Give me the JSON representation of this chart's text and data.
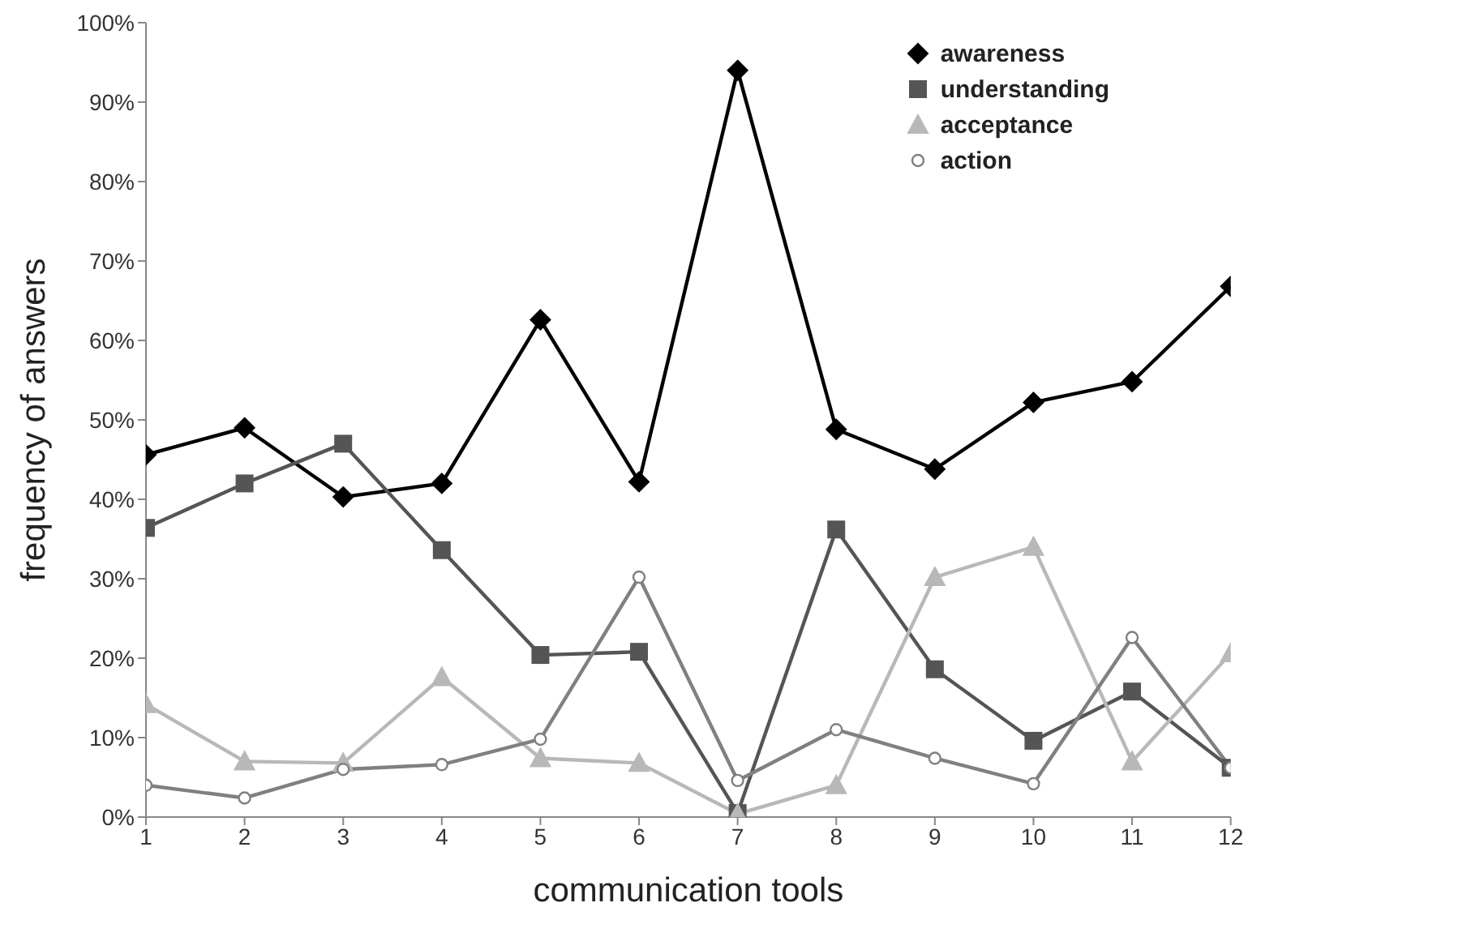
{
  "chart_data": {
    "type": "line",
    "xlabel": "communication tools",
    "ylabel": "frequency of answers",
    "x": [
      1,
      2,
      3,
      4,
      5,
      6,
      7,
      8,
      9,
      10,
      11,
      12
    ],
    "xlim": [
      1,
      12
    ],
    "xticks": [
      1,
      2,
      3,
      4,
      5,
      6,
      7,
      8,
      9,
      10,
      11,
      12
    ],
    "ylim": [
      0,
      100
    ],
    "yticks": [
      {
        "value": 0,
        "label": "0%"
      },
      {
        "value": 10,
        "label": "10%"
      },
      {
        "value": 20,
        "label": "20%"
      },
      {
        "value": 30,
        "label": "30%"
      },
      {
        "value": 40,
        "label": "40%"
      },
      {
        "value": 50,
        "label": "50%"
      },
      {
        "value": 60,
        "label": "60%"
      },
      {
        "value": 70,
        "label": "70%"
      },
      {
        "value": 80,
        "label": "80%"
      },
      {
        "value": 90,
        "label": "90%"
      },
      {
        "value": 100,
        "label": "100%"
      }
    ],
    "legend": "top right",
    "line_style": "solid",
    "series": [
      {
        "name": "awareness",
        "color": "#000000",
        "marker": "diamond",
        "values": [
          45.6,
          49,
          40.3,
          42,
          62.6,
          42.2,
          94,
          48.8,
          43.8,
          52.2,
          54.8,
          66.8
        ]
      },
      {
        "name": "understanding",
        "color": "#555555",
        "marker": "square",
        "values": [
          36.4,
          42,
          47,
          33.6,
          20.4,
          20.8,
          0.5,
          36.2,
          18.6,
          9.6,
          15.8,
          6.2
        ]
      },
      {
        "name": "acceptance",
        "color": "#b8b8b8",
        "marker": "triangle",
        "values": [
          14.2,
          7,
          6.8,
          17.6,
          7.4,
          6.8,
          0.4,
          4,
          30.2,
          34,
          7,
          20.6
        ]
      },
      {
        "name": "action",
        "color": "#808080",
        "marker": "circle",
        "values": [
          4,
          2.4,
          6,
          6.6,
          9.8,
          30.2,
          4.6,
          11,
          7.4,
          4.2,
          22.6,
          6.2
        ]
      }
    ]
  }
}
